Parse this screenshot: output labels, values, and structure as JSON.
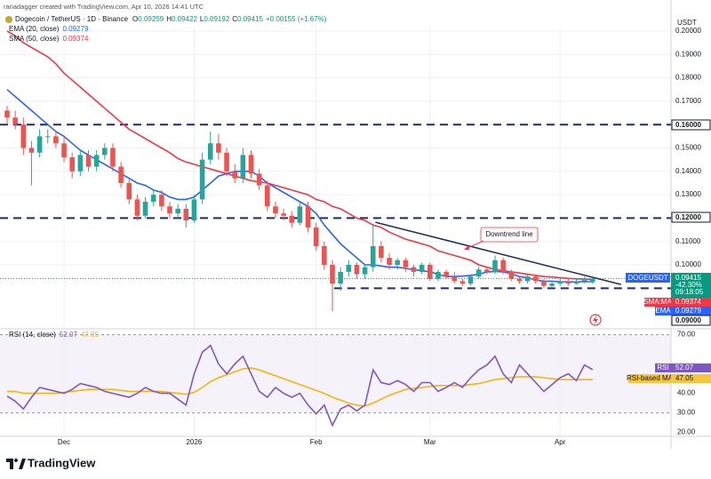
{
  "header": {
    "watermark": "ranadagger created with TradingView.com, Apr 10, 2026 14:41 UTC",
    "symbol": "Dogecoin / TetherUS · 1D · Binance",
    "ohlc_keys": [
      "O",
      "H",
      "L",
      "C"
    ],
    "change": "+0.00155 (+1.67%)",
    "currency": "USDT"
  },
  "chart_data": [
    {
      "type": "candlestick",
      "up_color": "#26a69a",
      "down_color": "#ef5350",
      "grid": true,
      "categories": [
        null,
        null,
        null,
        null,
        null,
        null,
        null,
        "Dec",
        null,
        null,
        null,
        null,
        null,
        null,
        null,
        null,
        null,
        null,
        null,
        null,
        null,
        null,
        null,
        "2026",
        null,
        null,
        null,
        null,
        null,
        null,
        null,
        null,
        null,
        null,
        null,
        null,
        null,
        null,
        "Feb",
        null,
        null,
        null,
        null,
        null,
        null,
        null,
        null,
        null,
        null,
        null,
        null,
        null,
        "Mar",
        null,
        null,
        null,
        null,
        null,
        null,
        null,
        null,
        null,
        null,
        null,
        null,
        null,
        null,
        null,
        "Apr",
        null,
        null,
        null,
        null
      ],
      "open": [
        0.166,
        0.163,
        0.16,
        0.15,
        0.148,
        0.155,
        0.155,
        0.152,
        0.146,
        0.14,
        0.147,
        0.142,
        0.147,
        0.15,
        0.142,
        0.135,
        0.128,
        0.121,
        0.127,
        0.13,
        0.125,
        0.122,
        0.124,
        0.119,
        0.128,
        0.145,
        0.152,
        0.148,
        0.14,
        0.137,
        0.147,
        0.139,
        0.134,
        0.125,
        0.122,
        0.121,
        0.118,
        0.125,
        0.116,
        0.108,
        0.1,
        0.092,
        0.097,
        0.1,
        0.096,
        0.099,
        0.108,
        0.103,
        0.1,
        0.102,
        0.099,
        0.097,
        0.1,
        0.094,
        0.097,
        0.095,
        0.093,
        0.092,
        0.095,
        0.098,
        0.097,
        0.102,
        0.097,
        0.094,
        0.093,
        0.095,
        0.093,
        0.091,
        0.092,
        0.093,
        0.092,
        0.093,
        0.09259
      ],
      "high": [
        0.168,
        0.166,
        0.163,
        0.153,
        0.158,
        0.158,
        0.157,
        0.155,
        0.148,
        0.149,
        0.149,
        0.149,
        0.152,
        0.152,
        0.144,
        0.137,
        0.13,
        0.129,
        0.132,
        0.132,
        0.127,
        0.126,
        0.126,
        0.13,
        0.148,
        0.157,
        0.156,
        0.15,
        0.143,
        0.15,
        0.149,
        0.141,
        0.136,
        0.127,
        0.124,
        0.123,
        0.127,
        0.127,
        0.118,
        0.11,
        0.102,
        0.099,
        0.102,
        0.101,
        0.1,
        0.1175,
        0.11,
        0.105,
        0.103,
        0.103,
        0.1,
        0.101,
        0.101,
        0.098,
        0.098,
        0.097,
        0.094,
        0.096,
        0.099,
        0.099,
        0.104,
        0.103,
        0.098,
        0.095,
        0.096,
        0.096,
        0.094,
        0.093,
        0.094,
        0.094,
        0.094,
        0.095,
        0.09422
      ],
      "low": [
        0.16,
        0.158,
        0.147,
        0.134,
        0.146,
        0.152,
        0.15,
        0.144,
        0.137,
        0.138,
        0.14,
        0.14,
        0.145,
        0.14,
        0.133,
        0.126,
        0.119,
        0.12,
        0.125,
        0.123,
        0.12,
        0.12,
        0.116,
        0.118,
        0.126,
        0.143,
        0.145,
        0.138,
        0.135,
        0.135,
        0.137,
        0.132,
        0.123,
        0.12,
        0.119,
        0.116,
        0.117,
        0.114,
        0.106,
        0.098,
        0.0802,
        0.089,
        0.095,
        0.094,
        0.094,
        0.097,
        0.101,
        0.098,
        0.098,
        0.097,
        0.095,
        0.096,
        0.093,
        0.093,
        0.094,
        0.092,
        0.091,
        0.091,
        0.094,
        0.096,
        0.096,
        0.096,
        0.093,
        0.092,
        0.092,
        0.092,
        0.09,
        0.0905,
        0.091,
        0.091,
        0.0915,
        0.092,
        0.09192
      ],
      "close": [
        0.163,
        0.16,
        0.15,
        0.148,
        0.155,
        0.155,
        0.152,
        0.146,
        0.14,
        0.147,
        0.142,
        0.147,
        0.15,
        0.142,
        0.135,
        0.128,
        0.121,
        0.127,
        0.13,
        0.125,
        0.122,
        0.124,
        0.119,
        0.128,
        0.145,
        0.152,
        0.148,
        0.14,
        0.137,
        0.147,
        0.139,
        0.134,
        0.125,
        0.122,
        0.121,
        0.118,
        0.125,
        0.116,
        0.108,
        0.1,
        0.092,
        0.097,
        0.1,
        0.096,
        0.099,
        0.108,
        0.103,
        0.1,
        0.102,
        0.099,
        0.097,
        0.1,
        0.094,
        0.097,
        0.095,
        0.093,
        0.092,
        0.095,
        0.098,
        0.097,
        0.102,
        0.097,
        0.094,
        0.093,
        0.095,
        0.093,
        0.091,
        0.092,
        0.093,
        0.092,
        0.093,
        0.094,
        0.09415
      ],
      "series": [
        {
          "name": "EMA (20, close)",
          "tag": "EMA",
          "color": "#2962ff",
          "values": [
            0.175,
            0.172,
            0.169,
            0.166,
            0.163,
            0.16,
            0.157,
            0.155,
            0.152,
            0.149,
            0.147,
            0.145,
            0.143,
            0.141,
            0.139,
            0.137,
            0.135,
            0.134,
            0.132,
            0.131,
            0.129,
            0.128,
            0.128,
            0.129,
            0.132,
            0.135,
            0.138,
            0.139,
            0.14,
            0.14,
            0.14,
            0.138,
            0.135,
            0.133,
            0.131,
            0.129,
            0.127,
            0.125,
            0.122,
            0.117,
            0.113,
            0.109,
            0.106,
            0.103,
            0.1,
            0.1,
            0.0995,
            0.099,
            0.099,
            0.0985,
            0.098,
            0.0975,
            0.097,
            0.096,
            0.095,
            0.095,
            0.0952,
            0.0955,
            0.096,
            0.097,
            0.0972,
            0.097,
            0.0962,
            0.095,
            0.0945,
            0.0935,
            0.093,
            0.093,
            0.0928,
            0.0927,
            0.0927,
            0.0928,
            0.09279
          ]
        },
        {
          "name": "SMA (50, close)",
          "tag": "SMA:MA",
          "color": "#f23645",
          "values": [
            0.2,
            0.198,
            0.195,
            0.193,
            0.191,
            0.189,
            0.186,
            0.182,
            0.179,
            0.176,
            0.173,
            0.17,
            0.167,
            0.164,
            0.161,
            0.158,
            0.156,
            0.154,
            0.152,
            0.15,
            0.148,
            0.1455,
            0.144,
            0.143,
            0.142,
            0.141,
            0.14,
            0.139,
            0.138,
            0.137,
            0.136,
            0.1355,
            0.135,
            0.134,
            0.133,
            0.132,
            0.131,
            0.13,
            0.128,
            0.127,
            0.125,
            0.124,
            0.122,
            0.12,
            0.119,
            0.117,
            0.116,
            0.114,
            0.1125,
            0.111,
            0.11,
            0.109,
            0.108,
            0.106,
            0.105,
            0.104,
            0.103,
            0.102,
            0.1,
            0.099,
            0.098,
            0.0975,
            0.097,
            0.0965,
            0.096,
            0.0955,
            0.095,
            0.0948,
            0.0945,
            0.0942,
            0.094,
            0.0939,
            0.09374
          ]
        }
      ],
      "ylim": [
        0.0734,
        0.2019
      ],
      "yticks": [
        {
          "value": 0.1,
          "label": "0.10000"
        },
        {
          "value": 0.11,
          "label": "0.11000"
        },
        {
          "value": 0.12,
          "label": "0.12000"
        },
        {
          "value": 0.13,
          "label": "0.13000"
        },
        {
          "value": 0.14,
          "label": "0.14000"
        },
        {
          "value": 0.15,
          "label": "0.15000"
        },
        {
          "value": 0.16,
          "label": "0.16000"
        },
        {
          "value": 0.17,
          "label": "0.17000"
        },
        {
          "value": 0.18,
          "label": "0.18000"
        },
        {
          "value": 0.19,
          "label": "0.19000"
        },
        {
          "value": 0.2,
          "label": "0.20000"
        }
      ],
      "levels": [
        {
          "value": 0.16,
          "label": "0.16000"
        },
        {
          "value": 0.12,
          "label": "0.12000"
        },
        {
          "value": 0.09,
          "label": "0.09000",
          "x_from": 40.2
        }
      ],
      "trendline": {
        "x": [
          45.3,
          75.5
        ],
        "y": [
          0.1182,
          0.0916
        ]
      },
      "annotation": "Downtrend line",
      "tags": {
        "symbol": "DOGEUSDT",
        "change": "-42.30%",
        "countdown": "09:18:05"
      }
    },
    {
      "type": "line",
      "title": "RSI (14, close)",
      "series": [
        {
          "name": "RSI",
          "color": "#7e57c2",
          "values": [
            38.6,
            36,
            32,
            38,
            43,
            42,
            41,
            40,
            42,
            45,
            44,
            43,
            41,
            40,
            39,
            38,
            40,
            43,
            41,
            40,
            40,
            37,
            34,
            50,
            61,
            64.5,
            55,
            50,
            55,
            59,
            50,
            41,
            38,
            43,
            40,
            38,
            40,
            34,
            29.5,
            34,
            23.6,
            32,
            34,
            31,
            34,
            52,
            45.5,
            44.5,
            46.5,
            44.5,
            41,
            45.5,
            45.5,
            41,
            43,
            45.5,
            43,
            48,
            52,
            54.5,
            59,
            50,
            45.5,
            54.5,
            50,
            45.5,
            41,
            44.5,
            48,
            50,
            46.5,
            54.5,
            52.07
          ]
        },
        {
          "name": "RSI-based MA",
          "color": "#f5b50a",
          "values": [
            41,
            41,
            40,
            40,
            40,
            40,
            40,
            40.5,
            41,
            41.5,
            42,
            42,
            42,
            42,
            41.5,
            41,
            41,
            41,
            41,
            41,
            40.5,
            40,
            39.5,
            40.5,
            43,
            46,
            48,
            49.5,
            51,
            52.5,
            53,
            52,
            50.5,
            49,
            47.5,
            46,
            44.5,
            43,
            41.5,
            40,
            38,
            36.5,
            35,
            34,
            33.5,
            35,
            37,
            39,
            40.5,
            42,
            42.5,
            43,
            43.5,
            44,
            44,
            44,
            44,
            44.5,
            45,
            46,
            47,
            47.5,
            48,
            48.5,
            48.5,
            48.5,
            48,
            47.5,
            47,
            47,
            47,
            47,
            47.05
          ]
        }
      ],
      "ylim": [
        18,
        73
      ],
      "yticks": [
        {
          "value": 70,
          "label": "70.00"
        },
        {
          "value": 40,
          "label": "40.00"
        },
        {
          "value": 30,
          "label": "30.00"
        },
        {
          "value": 20,
          "label": "20.00"
        }
      ]
    }
  ],
  "footer": {
    "logo": "TradingView"
  }
}
